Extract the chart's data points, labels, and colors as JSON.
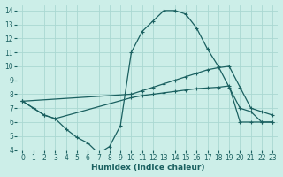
{
  "xlabel": "Humidex (Indice chaleur)",
  "background_color": "#cceee8",
  "grid_color": "#aad8d2",
  "line_color": "#1a6060",
  "xlim": [
    -0.5,
    23.5
  ],
  "ylim": [
    4,
    14.4
  ],
  "xticks": [
    0,
    1,
    2,
    3,
    4,
    5,
    6,
    7,
    8,
    9,
    10,
    11,
    12,
    13,
    14,
    15,
    16,
    17,
    18,
    19,
    20,
    21,
    22,
    23
  ],
  "yticks": [
    4,
    5,
    6,
    7,
    8,
    9,
    10,
    11,
    12,
    13,
    14
  ],
  "line1_x": [
    0,
    1,
    2,
    3,
    4,
    5,
    6,
    7,
    8,
    9,
    10,
    11,
    12,
    13,
    14,
    15,
    16,
    17,
    18,
    19,
    20,
    21,
    22,
    23
  ],
  "line1_y": [
    7.5,
    7.0,
    6.5,
    6.25,
    5.5,
    4.9,
    4.5,
    3.75,
    4.25,
    5.75,
    11.0,
    12.5,
    13.25,
    14.0,
    14.0,
    13.75,
    12.75,
    11.25,
    10.0,
    8.5,
    7.0,
    6.75,
    6.0,
    6.0
  ],
  "line2_x": [
    0,
    10,
    11,
    12,
    13,
    14,
    15,
    16,
    17,
    18,
    19,
    20,
    21,
    22,
    23
  ],
  "line2_y": [
    7.5,
    8.0,
    8.25,
    8.5,
    8.75,
    9.0,
    9.25,
    9.5,
    9.75,
    9.9,
    10.0,
    8.5,
    7.0,
    6.75,
    6.5
  ],
  "line3_x": [
    0,
    1,
    2,
    3,
    10,
    11,
    12,
    13,
    14,
    15,
    16,
    17,
    18,
    19,
    20,
    21,
    22,
    23
  ],
  "line3_y": [
    7.5,
    7.0,
    6.5,
    6.25,
    7.75,
    7.9,
    8.0,
    8.1,
    8.2,
    8.3,
    8.4,
    8.45,
    8.5,
    8.6,
    6.0,
    6.0,
    6.0,
    6.0
  ],
  "tick_fontsize": 5.5,
  "axis_fontsize": 6.5
}
